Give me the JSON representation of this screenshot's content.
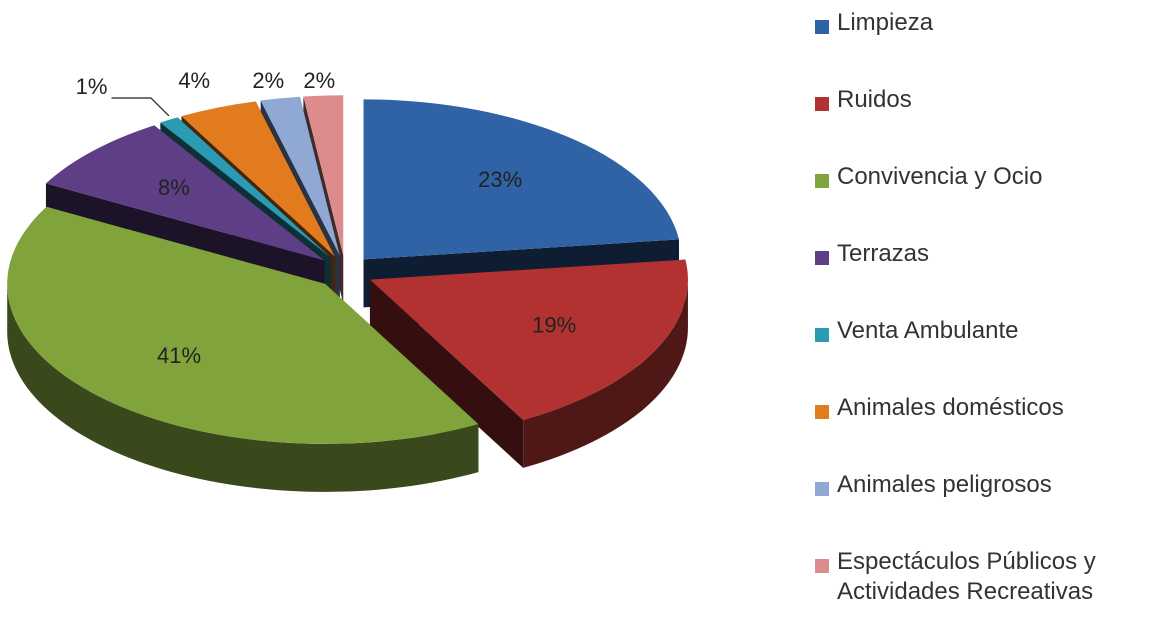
{
  "chart_data": {
    "type": "pie3d",
    "categories": [
      "Limpieza",
      "Ruidos",
      "Convivencia y Ocio",
      "Terrazas",
      "Venta Ambulante",
      "Animales domésticos",
      "Animales peligrosos",
      "Espectáculos Públicos y Actividades Recreativas"
    ],
    "values": [
      23,
      19,
      41,
      8,
      1,
      4,
      2,
      2
    ],
    "value_labels": [
      "23%",
      "19%",
      "41%",
      "8%",
      "1%",
      "4%",
      "2%",
      "2%"
    ],
    "colors": [
      "#3062a6",
      "#b23232",
      "#80a33c",
      "#5e3f86",
      "#2a9bb3",
      "#e27b1e",
      "#8fa8d4",
      "#dc8c8c"
    ],
    "legend": "right"
  }
}
